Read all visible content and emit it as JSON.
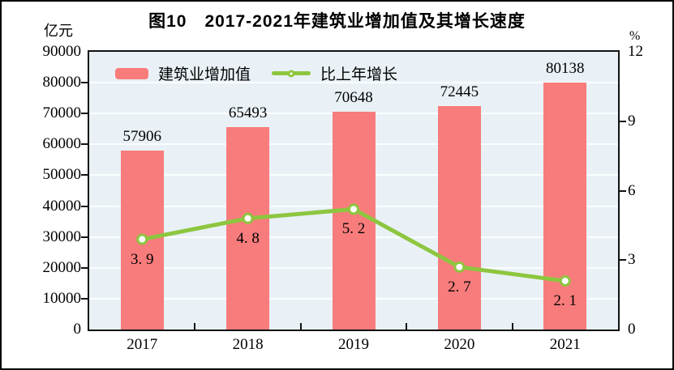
{
  "title": "图10　2017-2021年建筑业增加值及其增长速度",
  "axis_units": {
    "left": "亿元",
    "right": "%"
  },
  "legend": [
    {
      "label": "建筑业增加值",
      "type": "bar"
    },
    {
      "label": "比上年增长",
      "type": "line"
    }
  ],
  "colors": {
    "bar": "#f97c7c",
    "line": "#8dc63f",
    "marker_fill": "#ffffff",
    "plot_background": "#e9f1f6",
    "gridline": "#fbfdfe",
    "axis": "#111111"
  },
  "chart_data": {
    "type": "bar",
    "subtype": "bar+line-combo",
    "title": "图10　2017-2021年建筑业增加值及其增长速度",
    "categories": [
      "2017",
      "2018",
      "2019",
      "2020",
      "2021"
    ],
    "series": [
      {
        "name": "建筑业增加值",
        "type": "bar",
        "axis": "left",
        "values": [
          57906,
          65493,
          70648,
          72445,
          80138
        ],
        "labels": [
          "57906",
          "65493",
          "70648",
          "72445",
          "80138"
        ],
        "color": "#f97c7c"
      },
      {
        "name": "比上年增长",
        "type": "line",
        "axis": "right",
        "values": [
          3.9,
          4.8,
          5.2,
          2.7,
          2.1
        ],
        "labels": [
          "3. 9",
          "4. 8",
          "5. 2",
          "2. 7",
          "2. 1"
        ],
        "color": "#8dc63f"
      }
    ],
    "left_axis": {
      "label": "亿元",
      "min": 0,
      "max": 90000,
      "step": 10000,
      "ticks": [
        "90000",
        "80000",
        "70000",
        "60000",
        "50000",
        "40000",
        "30000",
        "20000",
        "10000",
        "0"
      ]
    },
    "right_axis": {
      "label": "%",
      "min": 0,
      "max": 12,
      "step": 3,
      "ticks": [
        "12",
        "9",
        "6",
        "3",
        "0"
      ]
    },
    "grid": {
      "horizontal": true,
      "vertical": false
    },
    "legend_position": "top-left-inside",
    "plot_background": "#e9f1f6"
  }
}
